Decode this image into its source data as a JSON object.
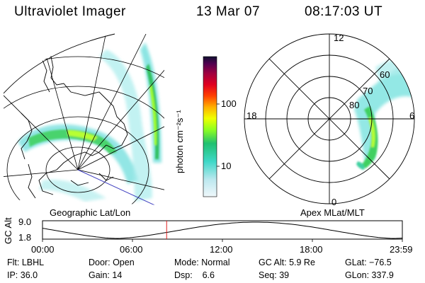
{
  "header": {
    "instrument": "Ultraviolet Imager",
    "date": "13 Mar 07",
    "time": "08:17:03 UT"
  },
  "colorbar": {
    "unit_label": "photon cm⁻²s⁻¹",
    "ticks": [
      "100",
      "10"
    ],
    "colors": [
      "#e8f4f8",
      "#40e0d0",
      "#00c060",
      "#a0ff00",
      "#ffff00",
      "#ffa000",
      "#ff2000",
      "#c00020",
      "#800060",
      "#400060",
      "#101030"
    ]
  },
  "left_panel": {
    "caption": "Geographic Lat/Lon"
  },
  "right_panel": {
    "caption": "Apex MLat/MLT",
    "mlt_labels": {
      "top": "12",
      "left": "18",
      "right": "6",
      "bottom": "0"
    },
    "mlat_labels": [
      "60",
      "70",
      "80"
    ]
  },
  "altitude_plot": {
    "ylabel": "GC Alt",
    "yticks": [
      "9.0",
      "1.8"
    ],
    "xticks": [
      "00:00",
      "06:00",
      "12:00",
      "18:00",
      "23:59"
    ],
    "marker_time_hours": 8.28
  },
  "info": {
    "filter_label": "Flt:",
    "filter_value": "LBHL",
    "door_label": "Door:",
    "door_value": "Open",
    "mode_label": "Mode:",
    "mode_value": "Normal",
    "gcalt_label": "GC Alt:",
    "gcalt_value": "5.9 Re",
    "glat_label": "GLat:",
    "glat_value": "−76.5",
    "ip_label": "IP:",
    "ip_value": "36.0",
    "gain_label": "Gain:",
    "gain_value": "14",
    "dsp_label": "Dsp:",
    "dsp_value": "6.6",
    "seq_label": "Seq:",
    "seq_value": "39",
    "glon_label": "GLon:",
    "glon_value": "337.9"
  }
}
